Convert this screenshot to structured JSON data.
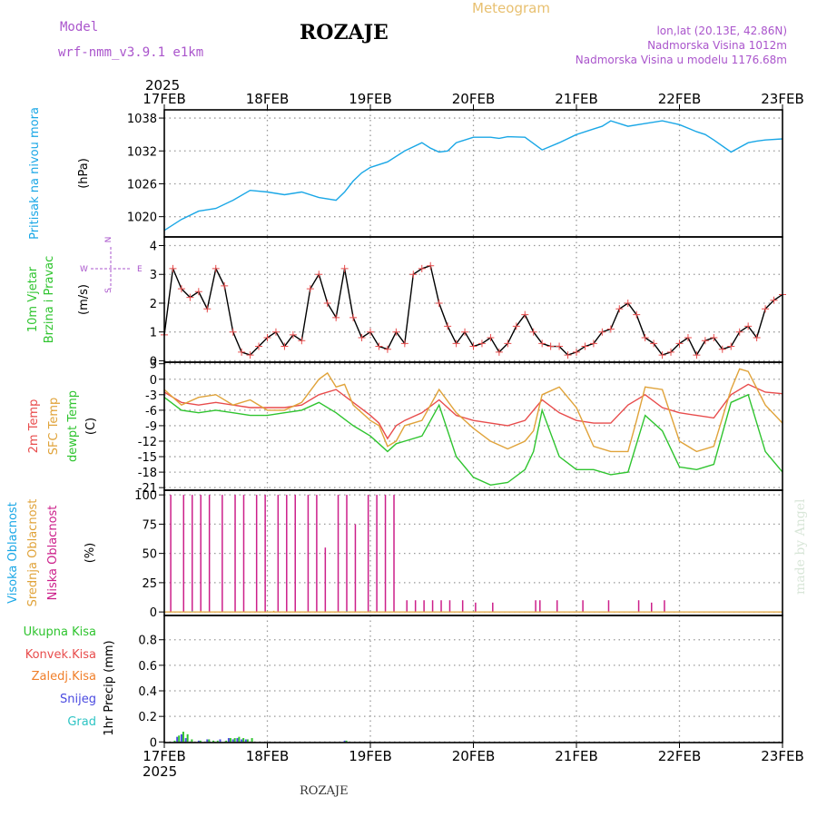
{
  "header": {
    "model_label": "Model",
    "model_name": "wrf-nmm_v3.9.1  e1km",
    "station_title": "ROZAJE",
    "meteogram_label": "Meteogram",
    "lonlat": "lon,lat (20.13E, 42.86N)",
    "altitude": "Nadmorska Visina 1012m",
    "model_altitude": "Nadmorska Visina u modelu 1176.68m",
    "footer_station": "ROZAJE",
    "credit": "made by Angel"
  },
  "colors": {
    "pressure": "#1aa7e6",
    "temp2m": "#e84c4c",
    "sfc_temp": "#e0a33a",
    "dewpt": "#2fc42f",
    "cloud_high": "#1aa7e6",
    "cloud_mid": "#e0a33a",
    "cloud_low": "#cc1f8a",
    "precip_total": "#2fc42f",
    "precip_conv": "#e84c4c",
    "precip_frozen": "#f07f2a",
    "snow": "#4a4ae0",
    "graupel": "#2ec4c4",
    "model_text": "#aa55cc",
    "meteogram_text": "#e8c070"
  },
  "chart_data": {
    "time_axis": {
      "year_label": "2025",
      "ticks": [
        "17FEB",
        "18FEB",
        "19FEB",
        "20FEB",
        "21FEB",
        "22FEB",
        "23FEB"
      ],
      "range_hours": [
        0,
        144
      ]
    },
    "panels": [
      {
        "id": "pressure",
        "type": "line",
        "ylabel": [
          "Pritisak na nivou mora",
          "(hPa)"
        ],
        "yticks": [
          1020,
          1026,
          1032,
          1038
        ],
        "ylim": [
          1016.3,
          1039.5
        ],
        "series": [
          {
            "hours": [
              0,
              4,
              8,
              12,
              16,
              20,
              24,
              28,
              32,
              36,
              40,
              42,
              44,
              46,
              48,
              52,
              56,
              60,
              62,
              64,
              66,
              68,
              72,
              76,
              78,
              80,
              84,
              88,
              92,
              96,
              100,
              102,
              104,
              108,
              112,
              116,
              120,
              124,
              126,
              128,
              132,
              136,
              138,
              140,
              144
            ],
            "values": [
              1017.5,
              1019.5,
              1021.0,
              1021.5,
              1023.0,
              1024.8,
              1024.5,
              1024.0,
              1024.5,
              1023.5,
              1023.0,
              1024.5,
              1026.5,
              1028.0,
              1029.0,
              1030.0,
              1032.0,
              1033.5,
              1032.5,
              1031.8,
              1032.0,
              1033.5,
              1034.5,
              1034.5,
              1034.3,
              1034.6,
              1034.5,
              1032.2,
              1033.5,
              1035.0,
              1036.0,
              1036.5,
              1037.5,
              1036.5,
              1037.0,
              1037.5,
              1036.8,
              1035.5,
              1035.0,
              1034.0,
              1031.8,
              1033.5,
              1033.8,
              1034.0,
              1034.2
            ]
          }
        ]
      },
      {
        "id": "wind",
        "type": "line",
        "ylabel": [
          "10m Vjetar",
          "Brzina i Pravac",
          "(m/s)"
        ],
        "compass": [
          "N",
          "W",
          "E",
          "S"
        ],
        "yticks": [
          0,
          1,
          2,
          3,
          4
        ],
        "ylim": [
          -0.05,
          4.3
        ],
        "series": [
          {
            "name": "speed",
            "hours": [
              0,
              2,
              4,
              6,
              8,
              10,
              12,
              14,
              16,
              18,
              20,
              22,
              24,
              26,
              28,
              30,
              32,
              34,
              36,
              38,
              40,
              42,
              44,
              46,
              48,
              50,
              52,
              54,
              56,
              58,
              60,
              62,
              64,
              66,
              68,
              70,
              72,
              74,
              76,
              78,
              80,
              82,
              84,
              86,
              88,
              90,
              92,
              94,
              96,
              98,
              100,
              102,
              104,
              106,
              108,
              110,
              112,
              114,
              116,
              118,
              120,
              122,
              124,
              126,
              128,
              130,
              132,
              134,
              136,
              138,
              140,
              142,
              144
            ],
            "values": [
              0.9,
              3.2,
              2.5,
              2.2,
              2.4,
              1.8,
              3.2,
              2.6,
              1.0,
              0.3,
              0.2,
              0.5,
              0.8,
              1.0,
              0.5,
              0.9,
              0.7,
              2.5,
              3.0,
              2.0,
              1.5,
              3.2,
              1.5,
              0.8,
              1.0,
              0.5,
              0.4,
              1.0,
              0.6,
              3.0,
              3.2,
              3.3,
              2.0,
              1.2,
              0.6,
              1.0,
              0.5,
              0.6,
              0.8,
              0.3,
              0.6,
              1.2,
              1.6,
              1.0,
              0.6,
              0.5,
              0.5,
              0.2,
              0.3,
              0.5,
              0.6,
              1.0,
              1.1,
              1.8,
              2.0,
              1.6,
              0.8,
              0.6,
              0.2,
              0.3,
              0.6,
              0.8,
              0.2,
              0.7,
              0.8,
              0.4,
              0.5,
              1.0,
              1.2,
              0.8,
              1.8,
              2.1,
              2.3
            ]
          }
        ]
      },
      {
        "id": "temperature",
        "type": "line",
        "ylabel": [
          "2m Temp",
          "SFC Temp",
          "dewpt Temp",
          "(C)"
        ],
        "yticks": [
          3,
          0,
          -3,
          -6,
          -9,
          -12,
          -15,
          -18,
          -21
        ],
        "ylim": [
          -21.5,
          3.3
        ],
        "series": [
          {
            "name": "2m Temp",
            "hours": [
              0,
              4,
              8,
              12,
              16,
              20,
              24,
              28,
              32,
              36,
              40,
              44,
              48,
              50,
              52,
              54,
              56,
              60,
              64,
              68,
              72,
              76,
              80,
              84,
              88,
              92,
              96,
              100,
              104,
              108,
              112,
              116,
              120,
              124,
              128,
              132,
              136,
              140,
              144
            ],
            "values": [
              -2.5,
              -4.5,
              -5.0,
              -4.5,
              -5.0,
              -5.5,
              -5.5,
              -5.5,
              -5.0,
              -3.0,
              -2.0,
              -4.5,
              -7.0,
              -8.5,
              -11.5,
              -9.0,
              -8.0,
              -6.5,
              -4.0,
              -7.0,
              -8.0,
              -8.5,
              -9.0,
              -8.0,
              -4.0,
              -6.5,
              -8.0,
              -8.5,
              -8.5,
              -5.0,
              -3.0,
              -5.5,
              -6.5,
              -7.0,
              -7.5,
              -3.0,
              -1.0,
              -2.5,
              -2.8
            ]
          },
          {
            "name": "SFC Temp",
            "hours": [
              0,
              4,
              8,
              12,
              16,
              20,
              24,
              28,
              32,
              36,
              38,
              40,
              42,
              44,
              48,
              50,
              52,
              54,
              56,
              60,
              64,
              68,
              72,
              76,
              80,
              84,
              86,
              88,
              92,
              96,
              100,
              104,
              108,
              110,
              112,
              116,
              120,
              124,
              128,
              132,
              134,
              136,
              140,
              144
            ],
            "values": [
              -2.0,
              -5.0,
              -3.5,
              -3.0,
              -5.0,
              -4.0,
              -6.0,
              -6.0,
              -4.5,
              0.0,
              1.2,
              -1.5,
              -1.0,
              -5.0,
              -8.0,
              -9.0,
              -13.0,
              -12.0,
              -9.0,
              -8.0,
              -2.0,
              -6.5,
              -9.5,
              -12.0,
              -13.5,
              -12.0,
              -10.0,
              -3.0,
              -1.5,
              -5.5,
              -13.0,
              -14.0,
              -14.0,
              -8.0,
              -1.5,
              -2.0,
              -12.0,
              -14.0,
              -13.0,
              -2.0,
              2.0,
              1.5,
              -5.0,
              -8.5
            ]
          },
          {
            "name": "dewpt Temp",
            "hours": [
              0,
              4,
              8,
              12,
              16,
              20,
              24,
              28,
              32,
              36,
              40,
              44,
              48,
              50,
              52,
              54,
              56,
              60,
              64,
              68,
              72,
              76,
              80,
              84,
              86,
              88,
              92,
              96,
              100,
              104,
              108,
              112,
              116,
              120,
              124,
              128,
              132,
              136,
              140,
              144
            ],
            "values": [
              -3.5,
              -6.0,
              -6.5,
              -6.0,
              -6.5,
              -7.0,
              -7.0,
              -6.5,
              -6.0,
              -4.5,
              -6.5,
              -9.0,
              -11.0,
              -12.5,
              -14.0,
              -12.5,
              -12.0,
              -11.0,
              -5.0,
              -15.0,
              -19.0,
              -20.5,
              -20.0,
              -17.5,
              -14.0,
              -6.0,
              -15.0,
              -17.5,
              -17.5,
              -18.5,
              -18.0,
              -7.0,
              -10.0,
              -17.0,
              -17.5,
              -16.5,
              -4.5,
              -3.0,
              -14.0,
              -18.0
            ]
          }
        ]
      },
      {
        "id": "clouds",
        "type": "bar",
        "ylabel": [
          "Visoka Oblacnost",
          "Srednja Oblacnost",
          "Niska Oblacnost",
          "(%)"
        ],
        "yticks": [
          0,
          25,
          50,
          75,
          100
        ],
        "ylim": [
          -3,
          104
        ],
        "series": [
          {
            "name": "Niska Oblacnost",
            "hours": [
              1.5,
              4.5,
              6.5,
              8.5,
              10.5,
              13.5,
              16.5,
              18.5,
              21.5,
              23.5,
              26.5,
              28.5,
              30.5,
              33.5,
              35.5,
              37.5,
              40.5,
              42.5,
              44.5,
              47.5,
              49.5,
              51.5,
              53.5,
              56.5,
              58.5,
              60.5,
              62.5,
              64.5,
              66.5,
              69.5,
              72.5,
              76.5,
              86.5,
              87.5,
              91.5,
              97.5,
              103.5,
              110.5,
              113.5,
              116.5
            ],
            "values": [
              100,
              100,
              100,
              100,
              100,
              100,
              100,
              100,
              100,
              100,
              100,
              100,
              100,
              100,
              100,
              55,
              100,
              100,
              75,
              100,
              100,
              100,
              100,
              10,
              10,
              10,
              10,
              10,
              10,
              10,
              8,
              8,
              10,
              10,
              10,
              10,
              10,
              10,
              8,
              10
            ]
          },
          {
            "name": "Srednja Oblacnost",
            "hours": [
              8.5,
              25.5
            ],
            "values": [
              1,
              1
            ]
          },
          {
            "name": "Visoka Oblacnost",
            "hours": [
              6.5,
              42.5
            ],
            "values": [
              1,
              1
            ]
          }
        ]
      },
      {
        "id": "precip",
        "type": "bar",
        "ylabel": [
          "Ukupna Kisa",
          "Konvek.Kisa",
          "Zaledj.Kisa",
          "Snijeg",
          "Grad",
          "1hr Precip (mm)"
        ],
        "yticks": [
          0,
          0.2,
          0.4,
          0.6,
          0.8
        ],
        "ylim": [
          -0.005,
          0.99
        ],
        "series": [
          {
            "name": "Snijeg",
            "hours": [
              3,
              4,
              5,
              8,
              10,
              13,
              15,
              16,
              17,
              18,
              19,
              42
            ],
            "values": [
              0.04,
              0.06,
              0.03,
              0.01,
              0.02,
              0.02,
              0.03,
              0.02,
              0.03,
              0.02,
              0.02,
              0.01
            ]
          },
          {
            "name": "Ukupna Kisa",
            "hours": [
              2,
              3,
              4,
              5,
              6,
              8,
              10,
              11,
              12,
              14,
              15,
              16,
              17,
              18,
              19,
              20,
              42
            ],
            "values": [
              0.01,
              0.05,
              0.08,
              0.06,
              0.02,
              0.01,
              0.02,
              0.01,
              0.01,
              0.01,
              0.03,
              0.03,
              0.04,
              0.03,
              0.02,
              0.03,
              0.01
            ]
          }
        ]
      }
    ]
  }
}
